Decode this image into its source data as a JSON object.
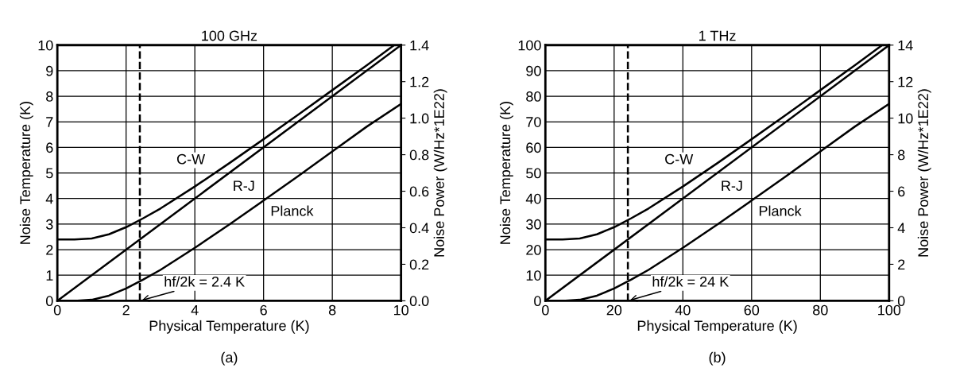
{
  "chart_data": [
    {
      "type": "line",
      "title": "100 GHz",
      "xlabel": "Physical Temperature (K)",
      "ylabel": "Noise Temperature (K)",
      "y2label": "Noise Power (W/Hz*1E22)",
      "xlim": [
        0,
        10
      ],
      "xticks": [
        0,
        2,
        4,
        6,
        8,
        10
      ],
      "ylim": [
        0,
        10
      ],
      "yticks": [
        0,
        1,
        2,
        3,
        4,
        5,
        6,
        7,
        8,
        9,
        10
      ],
      "y2lim": [
        0,
        1.4
      ],
      "y2ticks": [
        {
          "value": 0,
          "label": "0.0"
        },
        0.2,
        0.4,
        0.6,
        0.8,
        {
          "value": 1,
          "label": "1.0"
        },
        1.2,
        1.4
      ],
      "grid": true,
      "marker": "none",
      "line_style": "solid",
      "series": [
        {
          "name": "C-W",
          "color": "#000000",
          "x": [
            0,
            0.5,
            1,
            1.5,
            2,
            2.5,
            3,
            4,
            5,
            6,
            7,
            8,
            9,
            9.8
          ],
          "values": [
            2.4,
            2.4,
            2.44,
            2.6,
            2.88,
            3.23,
            3.61,
            4.47,
            5.38,
            6.32,
            7.27,
            8.24,
            9.21,
            10.0
          ]
        },
        {
          "name": "R-J",
          "color": "#000000",
          "x": [
            0,
            10
          ],
          "values": [
            0,
            10
          ]
        },
        {
          "name": "Planck",
          "color": "#000000",
          "x": [
            0,
            0.5,
            1,
            1.5,
            2,
            2.5,
            3,
            4,
            5,
            6,
            7,
            8,
            9,
            10
          ],
          "values": [
            0,
            0,
            0.04,
            0.2,
            0.48,
            0.83,
            1.21,
            2.07,
            2.98,
            3.92,
            4.87,
            5.84,
            6.81,
            7.7
          ]
        }
      ],
      "ref_lines": [
        {
          "axis": "x",
          "value": 2.4,
          "color": "#000000",
          "line_style": "dashed"
        }
      ],
      "annotations": [
        {
          "text": "hf/2k = 2.4 K",
          "x": 2.4,
          "y": 0
        },
        "(a)"
      ]
    },
    {
      "type": "line",
      "title": "1 THz",
      "xlabel": "Physical Temperature (K)",
      "ylabel": "Noise Temperature (K)",
      "y2label": "Noise Power (W/Hz*1E22)",
      "xlim": [
        0,
        100
      ],
      "xticks": [
        0,
        20,
        40,
        60,
        80,
        100
      ],
      "ylim": [
        0,
        100
      ],
      "yticks": [
        0,
        10,
        20,
        30,
        40,
        50,
        60,
        70,
        80,
        90,
        100
      ],
      "y2lim": [
        0,
        14
      ],
      "y2ticks": [
        0,
        2,
        4,
        6,
        8,
        10,
        12,
        14
      ],
      "grid": true,
      "marker": "none",
      "line_style": "solid",
      "series": [
        {
          "name": "C-W",
          "color": "#000000",
          "x": [
            0,
            5,
            10,
            15,
            20,
            25,
            30,
            40,
            50,
            60,
            70,
            80,
            90,
            98
          ],
          "values": [
            24,
            24,
            24.4,
            26,
            28.8,
            32.3,
            36.1,
            44.7,
            53.8,
            63.2,
            72.7,
            82.4,
            92.1,
            100
          ]
        },
        {
          "name": "R-J",
          "color": "#000000",
          "x": [
            0,
            100
          ],
          "values": [
            0,
            100
          ]
        },
        {
          "name": "Planck",
          "color": "#000000",
          "x": [
            0,
            5,
            10,
            15,
            20,
            25,
            30,
            40,
            50,
            60,
            70,
            80,
            90,
            100
          ],
          "values": [
            0,
            0,
            0.4,
            2,
            4.8,
            8.3,
            12.1,
            20.7,
            29.8,
            39.2,
            48.7,
            58.4,
            68.1,
            77
          ]
        }
      ],
      "ref_lines": [
        {
          "axis": "x",
          "value": 24,
          "color": "#000000",
          "line_style": "dashed"
        }
      ],
      "annotations": [
        {
          "text": "hf/2k = 24 K",
          "x": 24,
          "y": 0
        },
        "(b)"
      ]
    }
  ]
}
